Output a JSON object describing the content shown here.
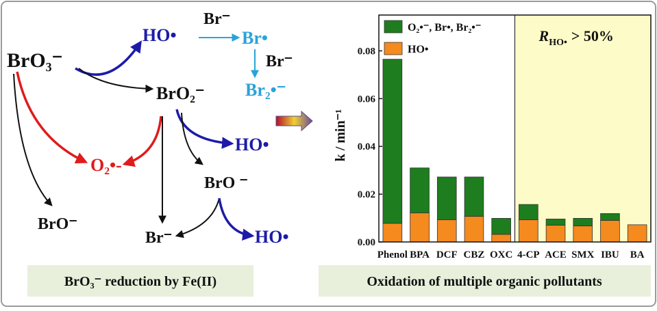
{
  "diagram": {
    "nodes": [
      {
        "label": "BrO₃⁻"
      },
      {
        "label": "HO•"
      },
      {
        "label": "Br⁻"
      },
      {
        "label": "Br•"
      },
      {
        "label": "Br⁻"
      },
      {
        "label": "Br₂•⁻"
      },
      {
        "label": "BrO₂⁻"
      },
      {
        "label": "HO•"
      },
      {
        "label": "O₂•-"
      },
      {
        "label": "BrO ⁻"
      },
      {
        "label": "BrO⁻"
      },
      {
        "label": "Br⁻"
      },
      {
        "label": "HO•"
      }
    ],
    "captions": [
      "BrO₃⁻ reduction by Fe(II)",
      "Oxidation of multiple organic pollutants"
    ]
  },
  "chart_data": {
    "type": "bar",
    "stacked": true,
    "y_label": "k / min⁻¹",
    "annotation": {
      "symbol": "R",
      "subscript": "HO•",
      "text": "> 50%"
    },
    "categories": [
      "Phenol",
      "BPA",
      "DCF",
      "CBZ",
      "OXC",
      "4-CP",
      "ACE",
      "SMX",
      "IBU",
      "BA"
    ],
    "series": [
      {
        "name": "HO•",
        "color": "#f58a1f",
        "values": [
          0.0078,
          0.0122,
          0.0093,
          0.0107,
          0.0032,
          0.0093,
          0.007,
          0.0067,
          0.009,
          0.0072
        ]
      },
      {
        "name": "O₂•⁻, Br•, Br₂•⁻",
        "color": "#1e7d1e",
        "values": [
          0.0687,
          0.0188,
          0.0179,
          0.0165,
          0.0067,
          0.0064,
          0.0026,
          0.0032,
          0.0029,
          0
        ]
      }
    ],
    "ylim": [
      0,
      0.095
    ],
    "yticks": [
      {
        "value": 0,
        "label": "0.00"
      },
      0.02,
      0.04,
      0.06,
      0.08
    ]
  }
}
